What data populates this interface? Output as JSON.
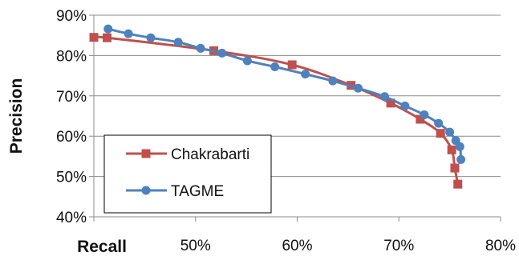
{
  "chart_data": {
    "type": "line",
    "xlabel": "Recall",
    "ylabel": "Precision",
    "xlim": [
      0.4,
      0.8
    ],
    "ylim": [
      0.4,
      0.9
    ],
    "x_ticks": [
      0.5,
      0.6,
      0.7,
      0.8
    ],
    "x_tick_labels": [
      "50%",
      "60%",
      "70%",
      "80%"
    ],
    "y_ticks": [
      0.4,
      0.5,
      0.6,
      0.7,
      0.8,
      0.9
    ],
    "y_tick_labels": [
      "40%",
      "50%",
      "60%",
      "70%",
      "80%",
      "90%"
    ],
    "grid": "horizontal",
    "legend_position": "bottom-left",
    "series": [
      {
        "name": "Chakrabarti",
        "color": "#c0504d",
        "marker": "square",
        "x": [
          0.4,
          0.413,
          0.518,
          0.595,
          0.653,
          0.692,
          0.721,
          0.741,
          0.752,
          0.755,
          0.758
        ],
        "y": [
          0.845,
          0.844,
          0.812,
          0.777,
          0.726,
          0.682,
          0.642,
          0.607,
          0.566,
          0.521,
          0.481
        ]
      },
      {
        "name": "TAGME",
        "color": "#4f81bd",
        "marker": "circle",
        "x": [
          0.414,
          0.434,
          0.456,
          0.483,
          0.505,
          0.526,
          0.551,
          0.578,
          0.608,
          0.635,
          0.66,
          0.686,
          0.706,
          0.725,
          0.739,
          0.75,
          0.756,
          0.76,
          0.761
        ],
        "y": [
          0.866,
          0.854,
          0.844,
          0.833,
          0.818,
          0.806,
          0.787,
          0.772,
          0.754,
          0.737,
          0.719,
          0.698,
          0.675,
          0.653,
          0.632,
          0.61,
          0.589,
          0.574,
          0.542
        ]
      }
    ]
  }
}
